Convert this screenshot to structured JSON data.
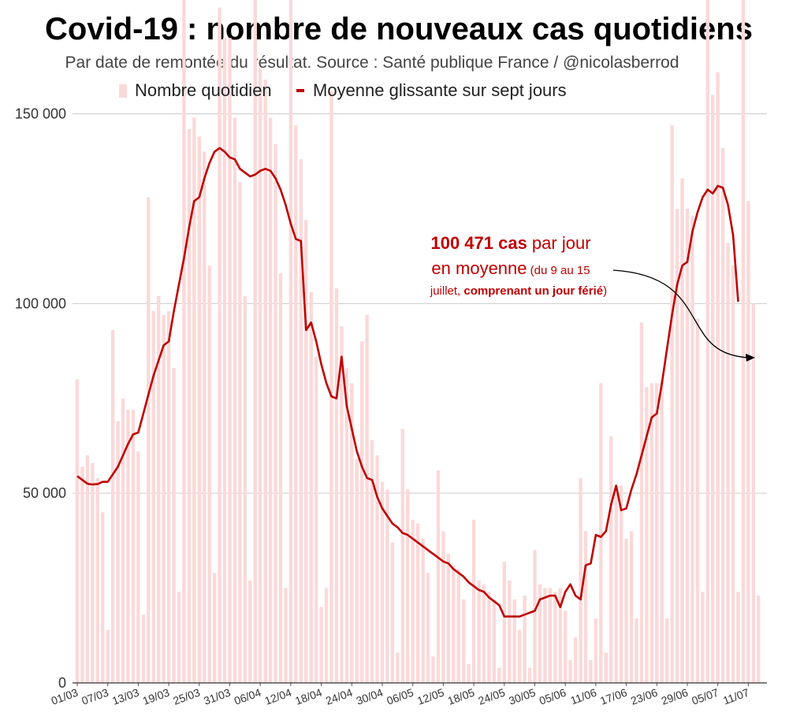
{
  "chart_data": {
    "type": "bar",
    "title": "Covid-19 : nombre de nouveaux cas quotidiens",
    "subtitle": "Par date de remontée du résultat. Source : Santé publique France / @nicolasberrod",
    "legend": [
      {
        "name": "Nombre quotidien",
        "color": "#fbd9d9"
      },
      {
        "name": "Moyenne glissante sur sept jours",
        "color": "#c00000"
      }
    ],
    "ylim": [
      0,
      180000
    ],
    "yticks": [
      0,
      50000,
      100000,
      150000
    ],
    "ytick_labels": [
      "0",
      "50 000",
      "100 000",
      "150 000"
    ],
    "xtick_labels": [
      "01/03",
      "07/03",
      "13/03",
      "19/03",
      "25/03",
      "31/03",
      "06/04",
      "12/04",
      "18/04",
      "24/04",
      "30/04",
      "06/05",
      "12/05",
      "18/05",
      "24/05",
      "30/05",
      "05/06",
      "11/06",
      "17/06",
      "23/06",
      "29/06",
      "05/07",
      "11/07"
    ],
    "x_start": "01/03",
    "x_end": "15/07",
    "daily_values": [
      80000,
      57000,
      60000,
      58000,
      54000,
      45000,
      14000,
      93000,
      69000,
      75000,
      72000,
      72000,
      61000,
      18000,
      128000,
      98000,
      102000,
      97000,
      98000,
      83000,
      24000,
      180000,
      146000,
      149000,
      144000,
      140000,
      110000,
      29000,
      178000,
      170000,
      170000,
      149000,
      132000,
      102000,
      27000,
      180000,
      162000,
      159000,
      149000,
      142000,
      108000,
      25000,
      180000,
      147000,
      138000,
      122000,
      103000,
      86000,
      20000,
      25000,
      156000,
      104000,
      94000,
      83000,
      79000,
      59000,
      90000,
      97000,
      64000,
      60000,
      53000,
      51000,
      37000,
      8000,
      67000,
      51000,
      43000,
      42000,
      38000,
      29000,
      7000,
      56000,
      40000,
      34000,
      31000,
      30000,
      22000,
      5000,
      43000,
      27000,
      26000,
      24000,
      22000,
      4000,
      32000,
      27000,
      22000,
      14000,
      23000,
      4000,
      35000,
      26000,
      25000,
      25000,
      24000,
      25000,
      19000,
      6000,
      12000,
      54000,
      40000,
      6000,
      17000,
      79000,
      8000,
      65000,
      52000,
      52000,
      38000,
      40000,
      17000,
      95000,
      78000,
      79000,
      79000,
      80000,
      17000,
      147000,
      125000,
      133000,
      125000,
      123000,
      96000,
      24000,
      180000,
      155000,
      161000,
      141000,
      116000,
      110000,
      24000,
      183000,
      127000,
      100000,
      23000
    ],
    "moving_average": [
      54500,
      53500,
      52500,
      52300,
      52400,
      53000,
      53000,
      55000,
      57000,
      60000,
      63000,
      65500,
      66000,
      71000,
      76000,
      81000,
      85000,
      89000,
      90000,
      98000,
      105000,
      112000,
      120000,
      127000,
      128000,
      133000,
      137000,
      140000,
      141000,
      140000,
      138500,
      138000,
      135500,
      134500,
      133500,
      134000,
      135000,
      135500,
      135000,
      133000,
      130000,
      126000,
      121000,
      117000,
      116500,
      93000,
      95000,
      90000,
      84000,
      79000,
      75500,
      75000,
      86000,
      73000,
      67000,
      61000,
      57000,
      54000,
      53500,
      49000,
      46000,
      44000,
      42000,
      41000,
      39500,
      39000,
      38000,
      37000,
      36000,
      35000,
      34000,
      33000,
      32000,
      31500,
      30000,
      29000,
      28000,
      26500,
      25500,
      24500,
      24000,
      22500,
      21500,
      20500,
      17500,
      17500,
      17500,
      17500,
      18000,
      18500,
      19000,
      22000,
      22500,
      23000,
      23000,
      20000,
      24000,
      26000,
      23000,
      22000,
      31000,
      31500,
      39000,
      38500,
      40000,
      47000,
      52000,
      45500,
      46000,
      51000,
      55000,
      60000,
      65000,
      70000,
      71000,
      79000,
      88000,
      97000,
      105000,
      110000,
      111000,
      119000,
      124000,
      128000,
      130000,
      129000,
      131000,
      130500,
      126000,
      118000,
      100471
    ],
    "annotation": {
      "value": "100 471 cas",
      "line1_rest": " par jour",
      "line2_main": "en moyenne",
      "line2_small": " (du 9 au 15",
      "line3_a": "juillet, ",
      "line3_b": "comprenant un jour férié",
      "line3_c": ")"
    }
  }
}
